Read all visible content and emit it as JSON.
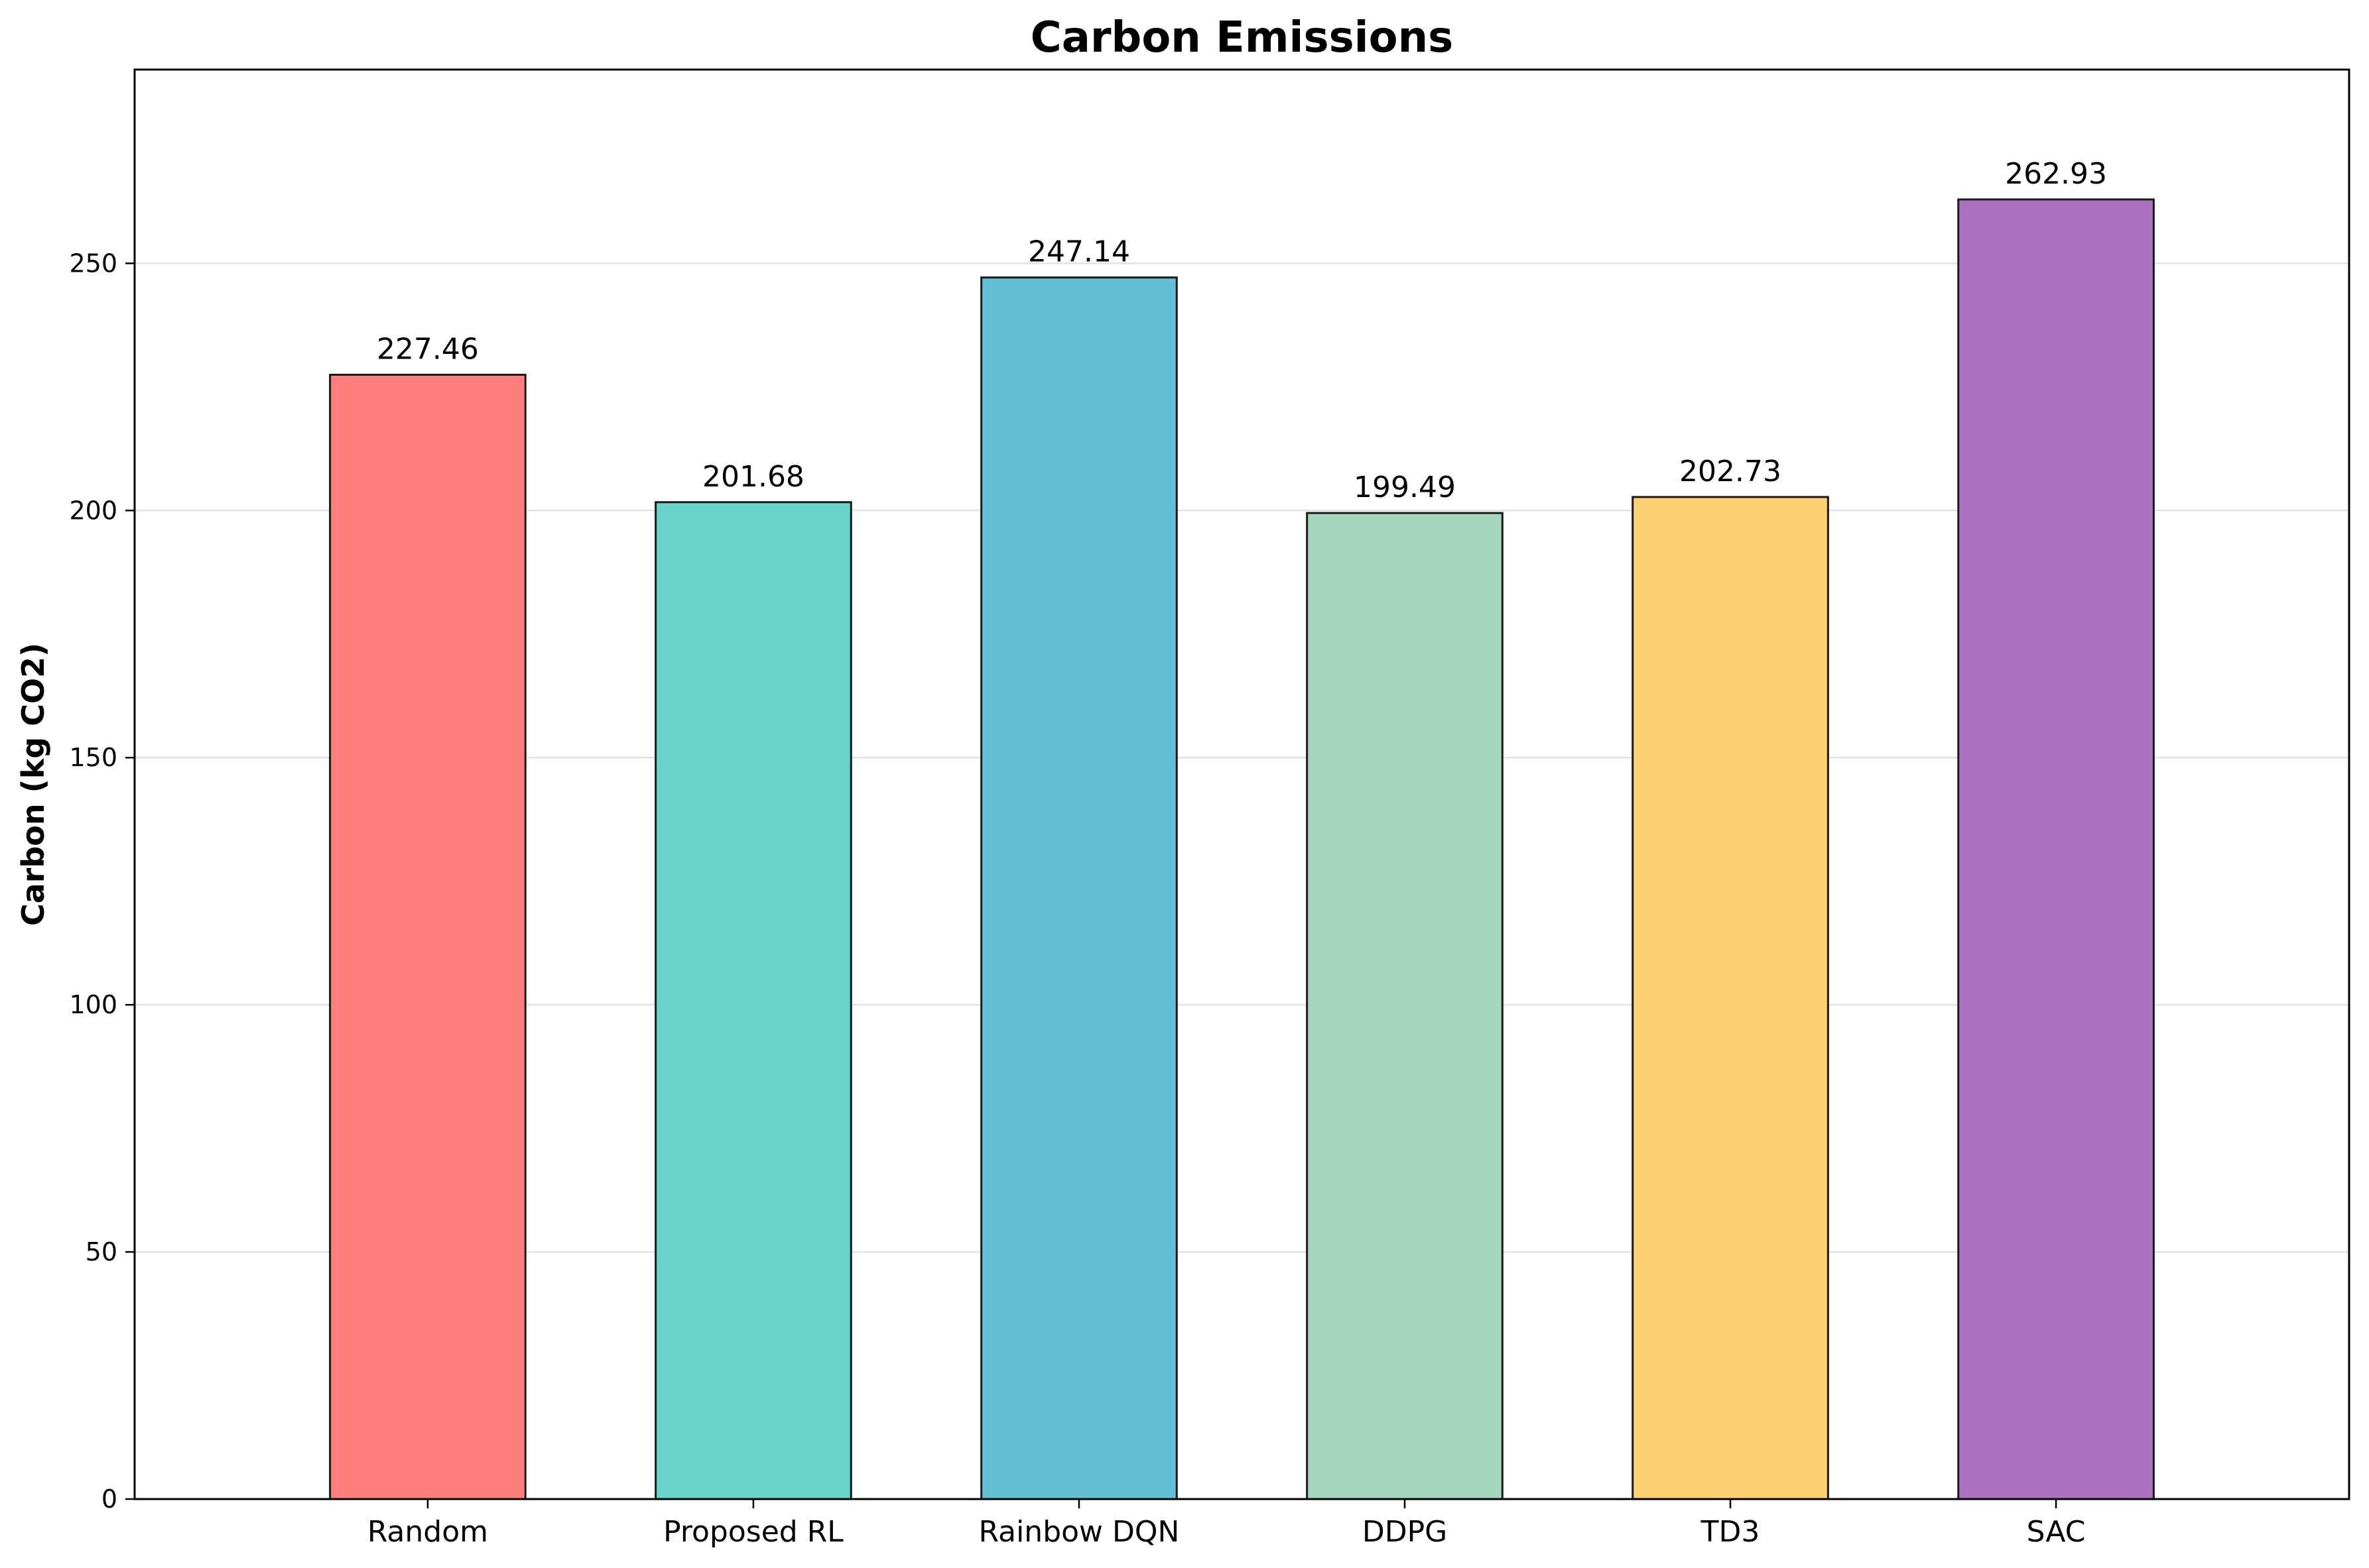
{
  "chart_data": {
    "type": "bar",
    "title": "Carbon Emissions",
    "xlabel": "",
    "ylabel": "Carbon (kg CO2)",
    "categories": [
      "Random",
      "Proposed RL",
      "Rainbow DQN",
      "DDPG",
      "TD3",
      "SAC"
    ],
    "values": [
      227.46,
      201.68,
      247.14,
      199.49,
      202.73,
      262.93
    ],
    "value_labels": [
      "227.46",
      "201.68",
      "247.14",
      "199.49",
      "202.73",
      "262.93"
    ],
    "colors": [
      "#ff7f7f",
      "#69d4cb",
      "#63bfd6",
      "#a6d5bf",
      "#fdd073",
      "#ad72bf"
    ],
    "ylim": [
      0,
      289.2
    ],
    "yticks": [
      0,
      50,
      100,
      150,
      200,
      250
    ],
    "ytick_labels": [
      "0",
      "50",
      "100",
      "150",
      "200",
      "250"
    ],
    "grid": true,
    "legend": "none"
  }
}
